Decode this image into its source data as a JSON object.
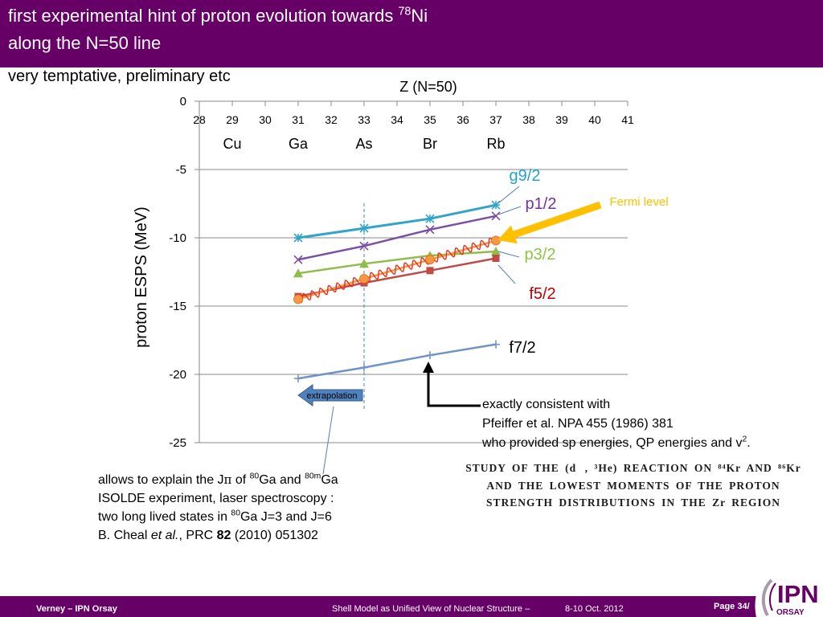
{
  "header": {
    "title_line1": "first experimental hint of proton evolution towards ",
    "title_sup": "78",
    "title_line1_end": "Ni",
    "title_line2": "along the N=50 line",
    "background": "#660066"
  },
  "subtitle": "very temptative, preliminary etc",
  "chart_data": {
    "type": "line",
    "xlabel": "Z (N=50)",
    "ylabel": "proton ESPS (MeV)",
    "xlim": [
      28,
      41
    ],
    "ylim": [
      -25,
      0
    ],
    "x_ticks": [
      28,
      29,
      30,
      31,
      32,
      33,
      34,
      35,
      36,
      37,
      38,
      39,
      40,
      41
    ],
    "y_ticks": [
      0,
      -5,
      -10,
      -15,
      -20,
      -25
    ],
    "grid": "horizontal",
    "element_labels": [
      {
        "z": 29,
        "label": "Cu"
      },
      {
        "z": 31,
        "label": "Ga"
      },
      {
        "z": 33,
        "label": "As"
      },
      {
        "z": 35,
        "label": "Br"
      },
      {
        "z": 37,
        "label": "Rb"
      }
    ],
    "x": [
      31,
      33,
      35,
      37
    ],
    "series": [
      {
        "name": "g9/2",
        "values": [
          -10.0,
          -9.3,
          -8.6,
          -7.6
        ],
        "color": "#31a4c9",
        "label_color": "#1fa3d4",
        "marker": "star"
      },
      {
        "name": "p1/2",
        "values": [
          -11.6,
          -10.6,
          -9.4,
          -8.4
        ],
        "color": "#7b4ea3",
        "label_color": "#7030a0",
        "marker": "x"
      },
      {
        "name": "p3/2",
        "values": [
          -12.6,
          -11.9,
          -11.3,
          -11.0
        ],
        "color": "#8fbc4a",
        "label_color": "#8cc63f",
        "marker": "triangle"
      },
      {
        "name": "f5/2",
        "values": [
          -14.3,
          -13.3,
          -12.4,
          -11.5
        ],
        "color": "#be4b48",
        "label_color": "#c00000",
        "marker": "square"
      },
      {
        "name": "f7/2",
        "values": [
          -20.3,
          -19.5,
          -18.6,
          -17.8
        ],
        "color": "#7094c6",
        "label_color": "#000000",
        "marker": "plus"
      },
      {
        "name": "Fermi level",
        "values": [
          -14.5,
          -13.0,
          -11.6,
          -10.2
        ],
        "color": "#f79646",
        "label_color": "#ffc000",
        "marker": "circle",
        "wavy_color": "#e3321d"
      }
    ],
    "annotations": {
      "extrapolation": "extrapolation",
      "dashed_line_z": 33,
      "fermi_arrow_color": "#ffc000",
      "extrapolation_arrow_color": "#4f81bd"
    }
  },
  "pfeiffer_note": {
    "line1": "exactly consistent with",
    "line2": "Pfeiffer et al. NPA 455 (1986) 381",
    "line3": "who provided sp energies, QP energies and v",
    "line3_sup": "2",
    "line3_end": "."
  },
  "paper_title": {
    "lines": [
      "STUDY OF THE (d⃗, ³He) REACTION ON ⁸⁴Kr AND ⁸⁶Kr",
      "AND THE LOWEST MOMENTS OF THE PROTON",
      "STRENGTH DISTRIBUTIONS IN THE Zr REGION"
    ]
  },
  "ga_note": {
    "line1_a": "allows to explain the J",
    "line1_pi": "π",
    "line1_b": " of ",
    "line1_sup1": "80",
    "line1_c": "Ga and ",
    "line1_sup2": "80m",
    "line1_d": "Ga",
    "line2": "ISOLDE experiment, laser spectroscopy :",
    "line3_a": "two long lived states in ",
    "line3_sup": "80",
    "line3_b": "Ga J=3 and J=6",
    "line4_a": "B. Cheal ",
    "line4_italic": "et al.",
    "line4_b": ", PRC ",
    "line4_bold": "82",
    "line4_c": " (2010) 051302"
  },
  "footer": {
    "author": "Verney – IPN Orsay",
    "conference": "Shell Model as Unified View of Nuclear Structure –",
    "date": "8-10 Oct. 2012",
    "page": "Page 34/",
    "background": "#660066"
  },
  "logo": {
    "text": "IPN",
    "sub": "ORSAY",
    "color": "#660066"
  }
}
